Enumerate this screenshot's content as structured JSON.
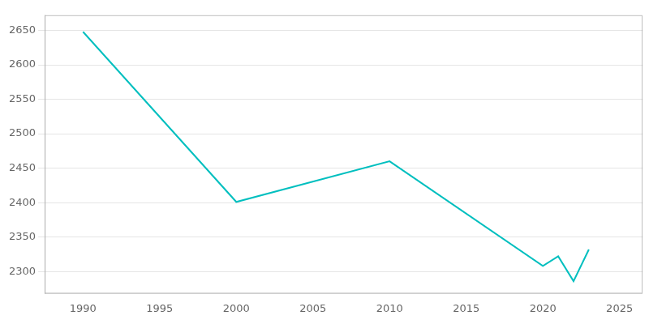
{
  "chart_data": {
    "type": "line",
    "x": [
      1990,
      2000,
      2010,
      2020,
      2021,
      2022,
      2023
    ],
    "values": [
      2648,
      2401,
      2460,
      2308,
      2322,
      2286,
      2332
    ],
    "color": "#00BFBF",
    "xlim": [
      1987.5,
      2026.5
    ],
    "ylim": [
      2268,
      2672
    ],
    "xticks": [
      1990,
      1995,
      2000,
      2005,
      2010,
      2015,
      2020,
      2025
    ],
    "yticks": [
      2300,
      2350,
      2400,
      2450,
      2500,
      2550,
      2600,
      2650
    ],
    "grid": "y"
  }
}
